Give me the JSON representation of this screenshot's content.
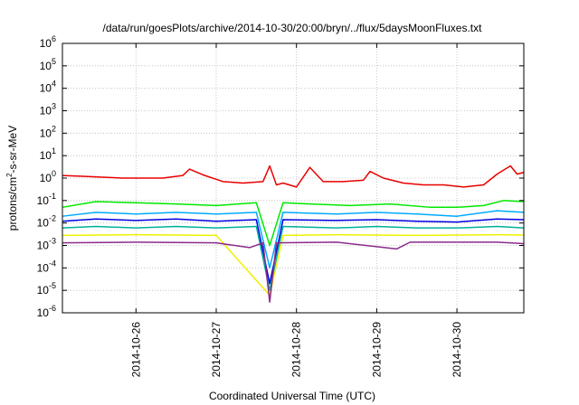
{
  "chart_data": {
    "type": "line",
    "title": "/data/run/goesPlots/archive/2014-10-30/20:00/bryn/../flux/5daysMoonFluxes.txt",
    "xlabel": "Coordinated Universal Time (UTC)",
    "ylabel": {
      "base": "protons/cm",
      "sup": "2",
      "rest": "-s-sr-MeV"
    },
    "yscale": "log",
    "ylim": [
      1e-06,
      1000000.0
    ],
    "xlim": [
      "2014-10-25T02:00",
      "2014-10-30T20:00"
    ],
    "grid": true,
    "legend": "none",
    "y_ticks": [
      {
        "base": "10",
        "exp": "-6",
        "value": 1e-06
      },
      {
        "base": "10",
        "exp": "-5",
        "value": 1e-05
      },
      {
        "base": "10",
        "exp": "-4",
        "value": 0.0001
      },
      {
        "base": "10",
        "exp": "-3",
        "value": 0.001
      },
      {
        "base": "10",
        "exp": "-2",
        "value": 0.01
      },
      {
        "base": "10",
        "exp": "-1",
        "value": 0.1
      },
      {
        "base": "10",
        "exp": "0",
        "value": 1
      },
      {
        "base": "10",
        "exp": "1",
        "value": 10
      },
      {
        "base": "10",
        "exp": "2",
        "value": 100
      },
      {
        "base": "10",
        "exp": "3",
        "value": 1000
      },
      {
        "base": "10",
        "exp": "4",
        "value": 10000
      },
      {
        "base": "10",
        "exp": "5",
        "value": 100000
      },
      {
        "base": "10",
        "exp": "6",
        "value": 1000000
      }
    ],
    "x_ticks": [
      {
        "label": "2014-10-26",
        "date": "2014-10-26T00:00"
      },
      {
        "label": "2014-10-27",
        "date": "2014-10-27T00:00"
      },
      {
        "label": "2014-10-28",
        "date": "2014-10-28T00:00"
      },
      {
        "label": "2014-10-29",
        "date": "2014-10-29T00:00"
      },
      {
        "label": "2014-10-30",
        "date": "2014-10-30T00:00"
      }
    ],
    "series": [
      {
        "color": "#e80000",
        "points": [
          [
            "2014-10-25T02:00",
            1.3
          ],
          [
            "2014-10-25T08:00",
            1.2
          ],
          [
            "2014-10-25T14:00",
            1.1
          ],
          [
            "2014-10-25T20:00",
            1.0
          ],
          [
            "2014-10-26T02:00",
            1.0
          ],
          [
            "2014-10-26T08:00",
            1.0
          ],
          [
            "2014-10-26T14:00",
            1.3
          ],
          [
            "2014-10-26T16:00",
            2.5
          ],
          [
            "2014-10-26T20:00",
            1.4
          ],
          [
            "2014-10-27T02:00",
            0.7
          ],
          [
            "2014-10-27T08:00",
            0.6
          ],
          [
            "2014-10-27T14:00",
            0.7
          ],
          [
            "2014-10-27T16:00",
            3.5
          ],
          [
            "2014-10-27T18:00",
            0.5
          ],
          [
            "2014-10-27T20:00",
            0.6
          ],
          [
            "2014-10-28T00:00",
            0.4
          ],
          [
            "2014-10-28T04:00",
            3.0
          ],
          [
            "2014-10-28T08:00",
            0.7
          ],
          [
            "2014-10-28T14:00",
            0.7
          ],
          [
            "2014-10-28T20:00",
            0.8
          ],
          [
            "2014-10-28T22:00",
            2.0
          ],
          [
            "2014-10-29T02:00",
            1.0
          ],
          [
            "2014-10-29T08:00",
            0.6
          ],
          [
            "2014-10-29T14:00",
            0.5
          ],
          [
            "2014-10-29T20:00",
            0.5
          ],
          [
            "2014-10-30T02:00",
            0.4
          ],
          [
            "2014-10-30T08:00",
            0.5
          ],
          [
            "2014-10-30T12:00",
            1.5
          ],
          [
            "2014-10-30T16:00",
            3.5
          ],
          [
            "2014-10-30T18:00",
            1.5
          ],
          [
            "2014-10-30T20:00",
            1.8
          ]
        ]
      },
      {
        "color": "#00e800",
        "points": [
          [
            "2014-10-25T02:00",
            0.05
          ],
          [
            "2014-10-25T12:00",
            0.09
          ],
          [
            "2014-10-26T00:00",
            0.08
          ],
          [
            "2014-10-26T12:00",
            0.07
          ],
          [
            "2014-10-27T00:00",
            0.06
          ],
          [
            "2014-10-27T12:00",
            0.08
          ],
          [
            "2014-10-27T16:00",
            0.001
          ],
          [
            "2014-10-27T20:00",
            0.08
          ],
          [
            "2014-10-28T04:00",
            0.07
          ],
          [
            "2014-10-28T16:00",
            0.06
          ],
          [
            "2014-10-29T04:00",
            0.07
          ],
          [
            "2014-10-29T16:00",
            0.05
          ],
          [
            "2014-10-30T00:00",
            0.05
          ],
          [
            "2014-10-30T08:00",
            0.06
          ],
          [
            "2014-10-30T14:00",
            0.1
          ],
          [
            "2014-10-30T20:00",
            0.09
          ]
        ]
      },
      {
        "color": "#00aaff",
        "points": [
          [
            "2014-10-25T02:00",
            0.02
          ],
          [
            "2014-10-25T12:00",
            0.03
          ],
          [
            "2014-10-26T00:00",
            0.025
          ],
          [
            "2014-10-26T12:00",
            0.03
          ],
          [
            "2014-10-27T00:00",
            0.025
          ],
          [
            "2014-10-27T12:00",
            0.03
          ],
          [
            "2014-10-27T16:00",
            0.0001
          ],
          [
            "2014-10-27T20:00",
            0.03
          ],
          [
            "2014-10-28T12:00",
            0.025
          ],
          [
            "2014-10-29T00:00",
            0.03
          ],
          [
            "2014-10-29T12:00",
            0.025
          ],
          [
            "2014-10-30T00:00",
            0.02
          ],
          [
            "2014-10-30T12:00",
            0.035
          ],
          [
            "2014-10-30T20:00",
            0.03
          ]
        ]
      },
      {
        "color": "#0000e0",
        "points": [
          [
            "2014-10-25T02:00",
            0.012
          ],
          [
            "2014-10-25T12:00",
            0.015
          ],
          [
            "2014-10-26T00:00",
            0.013
          ],
          [
            "2014-10-26T12:00",
            0.015
          ],
          [
            "2014-10-27T00:00",
            0.012
          ],
          [
            "2014-10-27T12:00",
            0.014
          ],
          [
            "2014-10-27T16:00",
            2e-05
          ],
          [
            "2014-10-27T20:00",
            0.014
          ],
          [
            "2014-10-28T12:00",
            0.013
          ],
          [
            "2014-10-29T00:00",
            0.014
          ],
          [
            "2014-10-29T12:00",
            0.012
          ],
          [
            "2014-10-30T00:00",
            0.011
          ],
          [
            "2014-10-30T12:00",
            0.015
          ],
          [
            "2014-10-30T20:00",
            0.014
          ]
        ]
      },
      {
        "color": "#00b0a0",
        "points": [
          [
            "2014-10-25T02:00",
            0.006
          ],
          [
            "2014-10-25T12:00",
            0.007
          ],
          [
            "2014-10-26T00:00",
            0.006
          ],
          [
            "2014-10-26T12:00",
            0.007
          ],
          [
            "2014-10-27T00:00",
            0.006
          ],
          [
            "2014-10-27T12:00",
            0.007
          ],
          [
            "2014-10-27T16:00",
            1e-05
          ],
          [
            "2014-10-27T20:00",
            0.007
          ],
          [
            "2014-10-28T12:00",
            0.006
          ],
          [
            "2014-10-29T00:00",
            0.007
          ],
          [
            "2014-10-29T12:00",
            0.006
          ],
          [
            "2014-10-30T00:00",
            0.006
          ],
          [
            "2014-10-30T12:00",
            0.007
          ],
          [
            "2014-10-30T20:00",
            0.006
          ]
        ]
      },
      {
        "color": "#f0f000",
        "points": [
          [
            "2014-10-25T02:00",
            0.0028
          ],
          [
            "2014-10-26T00:00",
            0.003
          ],
          [
            "2014-10-27T00:00",
            0.0028
          ],
          [
            "2014-10-27T16:00",
            6e-06
          ],
          [
            "2014-10-27T20:00",
            0.0028
          ],
          [
            "2014-10-28T12:00",
            0.003
          ],
          [
            "2014-10-29T12:00",
            0.0028
          ],
          [
            "2014-10-30T12:00",
            0.003
          ],
          [
            "2014-10-30T20:00",
            0.0029
          ]
        ]
      },
      {
        "color": "#8b2a8b",
        "points": [
          [
            "2014-10-25T02:00",
            0.0013
          ],
          [
            "2014-10-26T00:00",
            0.0014
          ],
          [
            "2014-10-27T00:00",
            0.0013
          ],
          [
            "2014-10-27T10:00",
            0.0008
          ],
          [
            "2014-10-27T14:00",
            0.0013
          ],
          [
            "2014-10-27T16:00",
            3e-06
          ],
          [
            "2014-10-27T18:00",
            0.0013
          ],
          [
            "2014-10-28T12:00",
            0.0014
          ],
          [
            "2014-10-29T06:00",
            0.0007
          ],
          [
            "2014-10-29T10:00",
            0.0014
          ],
          [
            "2014-10-30T12:00",
            0.0014
          ],
          [
            "2014-10-30T20:00",
            0.0012
          ]
        ]
      }
    ]
  }
}
